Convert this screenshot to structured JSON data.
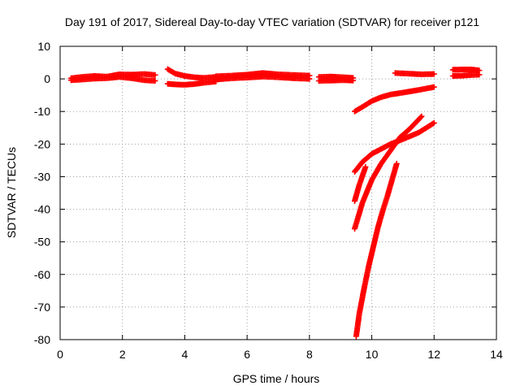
{
  "chart_data": {
    "type": "scatter",
    "title": "Day 191 of 2017, Sidereal Day-to-day VTEC variation (SDTVAR) for receiver p121",
    "xlabel": "GPS time / hours",
    "ylabel": "SDTVAR / TECUs",
    "xlim": [
      0,
      14
    ],
    "ylim": [
      -80,
      10
    ],
    "xticks": [
      0,
      2,
      4,
      6,
      8,
      10,
      12,
      14
    ],
    "yticks": [
      10,
      0,
      -10,
      -20,
      -30,
      -40,
      -50,
      -60,
      -70,
      -80
    ],
    "grid": true,
    "marker": "+",
    "color": "#ff0000",
    "series": [
      {
        "segments": [
          [
            [
              0.35,
              0.2
            ],
            [
              0.7,
              0.6
            ],
            [
              1.1,
              0.9
            ],
            [
              1.5,
              0.7
            ],
            [
              1.9,
              1.4
            ],
            [
              2.3,
              1.3
            ],
            [
              2.7,
              1.5
            ],
            [
              3.05,
              1.2
            ]
          ],
          [
            [
              0.35,
              -0.4
            ],
            [
              0.7,
              -0.2
            ],
            [
              1.1,
              0.1
            ],
            [
              1.5,
              0.2
            ],
            [
              1.9,
              0.6
            ],
            [
              2.3,
              0.2
            ],
            [
              2.7,
              -0.4
            ],
            [
              3.05,
              -0.6
            ]
          ],
          [
            [
              3.45,
              3.0
            ],
            [
              3.7,
              1.6
            ],
            [
              4.0,
              0.9
            ],
            [
              4.3,
              0.5
            ],
            [
              4.6,
              0.3
            ],
            [
              5.0,
              0.6
            ]
          ],
          [
            [
              3.45,
              -1.5
            ],
            [
              3.7,
              -1.7
            ],
            [
              4.0,
              -1.8
            ],
            [
              4.3,
              -1.6
            ],
            [
              4.6,
              -1.2
            ],
            [
              5.0,
              -0.8
            ]
          ],
          [
            [
              5.0,
              0.8
            ],
            [
              5.5,
              1.0
            ],
            [
              6.0,
              1.3
            ],
            [
              6.5,
              1.8
            ],
            [
              7.0,
              1.4
            ],
            [
              7.5,
              1.2
            ],
            [
              8.0,
              1.0
            ]
          ],
          [
            [
              5.0,
              -0.2
            ],
            [
              5.5,
              0.2
            ],
            [
              6.0,
              0.4
            ],
            [
              6.5,
              0.7
            ],
            [
              7.0,
              0.5
            ],
            [
              7.5,
              0.2
            ],
            [
              8.0,
              0.0
            ]
          ],
          [
            [
              8.3,
              0.6
            ],
            [
              8.7,
              0.7
            ],
            [
              9.1,
              0.5
            ],
            [
              9.4,
              0.3
            ]
          ],
          [
            [
              8.3,
              -0.6
            ],
            [
              8.7,
              -0.5
            ],
            [
              9.1,
              -0.4
            ],
            [
              9.4,
              -0.5
            ]
          ],
          [
            [
              10.75,
              1.8
            ],
            [
              11.2,
              1.6
            ],
            [
              11.6,
              1.4
            ],
            [
              12.0,
              1.5
            ]
          ],
          [
            [
              12.6,
              2.8
            ],
            [
              12.9,
              2.9
            ],
            [
              13.2,
              2.9
            ],
            [
              13.45,
              2.6
            ]
          ],
          [
            [
              12.6,
              0.9
            ],
            [
              12.9,
              1.0
            ],
            [
              13.2,
              1.2
            ],
            [
              13.45,
              1.3
            ]
          ]
        ]
      },
      {
        "segments": [
          [
            [
              9.45,
              -10.0
            ],
            [
              9.7,
              -8.6
            ],
            [
              10.0,
              -6.8
            ],
            [
              10.3,
              -5.6
            ],
            [
              10.6,
              -4.8
            ],
            [
              11.0,
              -4.2
            ],
            [
              11.5,
              -3.4
            ],
            [
              12.0,
              -2.5
            ]
          ],
          [
            [
              9.45,
              -28.5
            ],
            [
              9.7,
              -25.5
            ],
            [
              10.0,
              -23.0
            ],
            [
              10.3,
              -21.5
            ],
            [
              10.6,
              -20.0
            ],
            [
              11.0,
              -18.5
            ],
            [
              11.5,
              -16.5
            ],
            [
              12.0,
              -13.5
            ]
          ],
          [
            [
              9.45,
              -37.5
            ],
            [
              9.6,
              -32.5
            ],
            [
              9.8,
              -27.0
            ]
          ],
          [
            [
              9.45,
              -46.0
            ],
            [
              9.7,
              -38.0
            ],
            [
              10.0,
              -31.0
            ],
            [
              10.3,
              -26.0
            ],
            [
              10.6,
              -22.0
            ],
            [
              10.9,
              -18.0
            ],
            [
              11.2,
              -15.5
            ],
            [
              11.6,
              -11.5
            ]
          ],
          [
            [
              9.5,
              -79.0
            ],
            [
              9.6,
              -72.0
            ],
            [
              9.75,
              -64.5
            ],
            [
              9.9,
              -57.5
            ],
            [
              10.05,
              -51.5
            ],
            [
              10.2,
              -45.5
            ],
            [
              10.35,
              -40.5
            ],
            [
              10.5,
              -36.0
            ],
            [
              10.65,
              -31.0
            ],
            [
              10.8,
              -26.0
            ]
          ]
        ]
      }
    ]
  }
}
